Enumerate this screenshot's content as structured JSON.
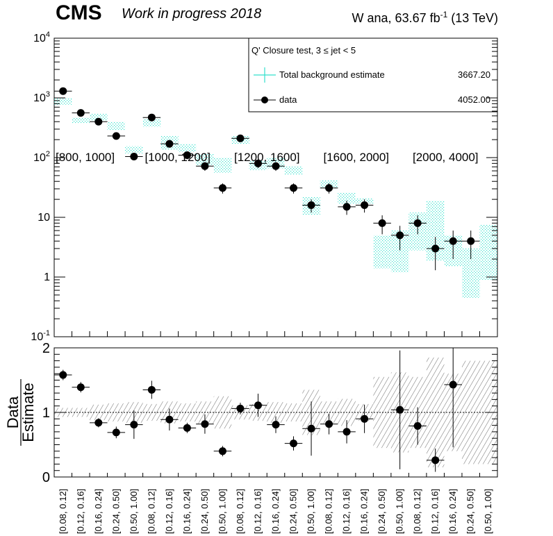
{
  "header": {
    "experiment": "CMS",
    "status": "Work in progress 2018",
    "lumi_prefix": "W ana, 63.67 fb",
    "lumi_exp": "-1",
    "lumi_suffix": " (13 TeV)"
  },
  "legend": {
    "title": "Q' Closure test, 3 ≤ jet < 5",
    "bkg_label": "Total background estimate",
    "bkg_value": "3667.20",
    "data_label": "data",
    "data_value": "4052.00"
  },
  "ratio_ylabel_num": "Data",
  "ratio_ylabel_den": "Estimate",
  "colors": {
    "band": "#33e0cc",
    "data": "#000000"
  },
  "chart_data": [
    {
      "type": "scatter",
      "scale": "log",
      "ylim": [
        0.1,
        10000
      ],
      "y_ticks": [
        {
          "v": 10000,
          "m": "10",
          "e": "4"
        },
        {
          "v": 1000,
          "m": "10",
          "e": "3"
        },
        {
          "v": 100,
          "m": "10",
          "e": "2"
        },
        {
          "v": 10,
          "m": "10",
          "e": ""
        },
        {
          "v": 1,
          "m": "1",
          "e": ""
        },
        {
          "v": 0.1,
          "m": "10",
          "e": "-1"
        }
      ],
      "categories": [
        "[0.08, 0.12]",
        "[0.12, 0.16]",
        "[0.16, 0.24]",
        "[0.24, 0.50]",
        "[0.50, 1.00]",
        "[0.08, 0.12]",
        "[0.12, 0.16]",
        "[0.16, 0.24]",
        "[0.24, 0.50]",
        "[0.50, 1.00]",
        "[0.08, 0.12]",
        "[0.12, 0.16]",
        "[0.16, 0.24]",
        "[0.24, 0.50]",
        "[0.50, 1.00]",
        "[0.08, 0.12]",
        "[0.12, 0.16]",
        "[0.16, 0.24]",
        "[0.24, 0.50]",
        "[0.50, 1.00]",
        "[0.08, 0.12]",
        "[0.12, 0.16]",
        "[0.16, 0.24]",
        "[0.24, 0.50]",
        "[0.50, 1.00]"
      ],
      "group_labels": [
        "[800, 1000]",
        "[1000, 1200]",
        "[1200, 1600]",
        "[1600, 2000]",
        "[2000, 4000]"
      ],
      "data": [
        1300,
        560,
        400,
        230,
        104,
        470,
        170,
        110,
        72,
        31,
        210,
        80,
        72,
        31,
        16,
        31,
        15,
        16,
        8,
        5,
        8,
        3,
        4,
        4,
        null
      ],
      "data_err_lo": [
        90,
        35,
        30,
        22,
        14,
        35,
        20,
        16,
        12,
        6,
        22,
        13,
        12,
        6,
        4,
        6,
        4,
        4,
        2.8,
        2.2,
        2.8,
        1.7,
        2,
        2,
        null
      ],
      "data_err_hi": [
        90,
        35,
        30,
        22,
        14,
        35,
        20,
        16,
        12,
        6,
        22,
        13,
        12,
        6,
        4,
        6,
        4,
        4,
        2.8,
        2.2,
        2.8,
        1.7,
        2,
        2,
        null
      ],
      "bkg_lo": [
        770,
        380,
        420,
        290,
        118,
        330,
        135,
        125,
        74,
        56,
        170,
        62,
        66,
        52,
        11,
        30,
        17,
        17,
        1.4,
        1.2,
        2.8,
        1.9,
        1.5,
        0.45,
        0.9
      ],
      "bkg_hi": [
        1000,
        470,
        540,
        400,
        155,
        450,
        230,
        170,
        115,
        100,
        230,
        90,
        100,
        72,
        22,
        42,
        26,
        21,
        5,
        6,
        12,
        19,
        5,
        3,
        7.5
      ]
    },
    {
      "type": "scatter",
      "ylabel": "Data/Estimate",
      "ylim": [
        0,
        2
      ],
      "y_ticks": [
        0,
        1,
        2
      ],
      "ratio": [
        1.58,
        1.39,
        0.84,
        0.69,
        0.81,
        1.35,
        0.89,
        0.76,
        0.82,
        0.4,
        1.06,
        1.11,
        0.81,
        0.52,
        0.75,
        0.82,
        0.7,
        0.9,
        null,
        1.04,
        0.79,
        0.26,
        1.43,
        null,
        null
      ],
      "ratio_err_lo": [
        0.08,
        0.08,
        0.07,
        0.09,
        0.22,
        0.14,
        0.17,
        0.08,
        0.15,
        0.08,
        0.09,
        0.18,
        0.13,
        0.11,
        0.42,
        0.16,
        0.18,
        0.22,
        null,
        0.92,
        0.29,
        0.18,
        0.97,
        null,
        null
      ],
      "ratio_err_hi": [
        0.08,
        0.08,
        0.07,
        0.09,
        0.22,
        0.14,
        0.17,
        0.08,
        0.15,
        0.08,
        0.09,
        0.18,
        0.13,
        0.11,
        0.42,
        0.16,
        0.18,
        0.22,
        null,
        0.92,
        0.29,
        0.18,
        0.97,
        null,
        null
      ],
      "band_half": [
        0.07,
        0.07,
        0.12,
        0.14,
        0.16,
        0.13,
        0.17,
        0.14,
        0.17,
        0.25,
        0.11,
        0.13,
        0.16,
        0.14,
        0.35,
        0.17,
        0.21,
        0.13,
        0.55,
        0.62,
        0.55,
        0.85,
        0.6,
        0.8,
        0.8
      ]
    }
  ]
}
